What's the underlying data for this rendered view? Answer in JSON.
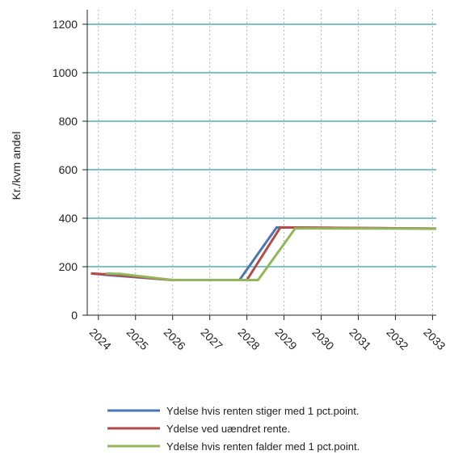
{
  "chart_data": {
    "type": "line",
    "ylabel": "Kr./kvm andel",
    "xlabel": "",
    "title": "",
    "ylim": [
      0,
      1260
    ],
    "xlim": [
      2023.7,
      2033.1
    ],
    "y_ticks": [
      0,
      200,
      400,
      600,
      800,
      1000,
      1200
    ],
    "x_ticks": [
      "2024",
      "2025",
      "2026",
      "2027",
      "2028",
      "2029",
      "2030",
      "2031",
      "2032",
      "2033"
    ],
    "grid": "horizontal solid, vertical dotted",
    "legend_position": "bottom",
    "series": [
      {
        "name": "Ydelse hvis renten stiger med 1 pct.point.",
        "color": "#4a77b4",
        "x": [
          2023.8,
          2024.3,
          2026.0,
          2027.8,
          2028.8,
          2033.1
        ],
        "y": [
          172,
          165,
          145,
          145,
          362,
          357
        ]
      },
      {
        "name": "Ydelse ved uændret rente.",
        "color": "#b44a4a",
        "x": [
          2023.8,
          2024.3,
          2026.0,
          2028.0,
          2028.9,
          2033.1
        ],
        "y": [
          172,
          168,
          145,
          145,
          362,
          357
        ]
      },
      {
        "name": "Ydelse hvis renten falder med 1 pct.point.",
        "color": "#93b65a",
        "x": [
          2024.2,
          2024.6,
          2026.0,
          2028.3,
          2029.3,
          2033.1
        ],
        "y": [
          172,
          170,
          145,
          145,
          358,
          357
        ]
      }
    ]
  },
  "colors": {
    "hgrid": "#4ab3b5",
    "vgrid": "#b5b5b5",
    "axis": "#222222"
  }
}
